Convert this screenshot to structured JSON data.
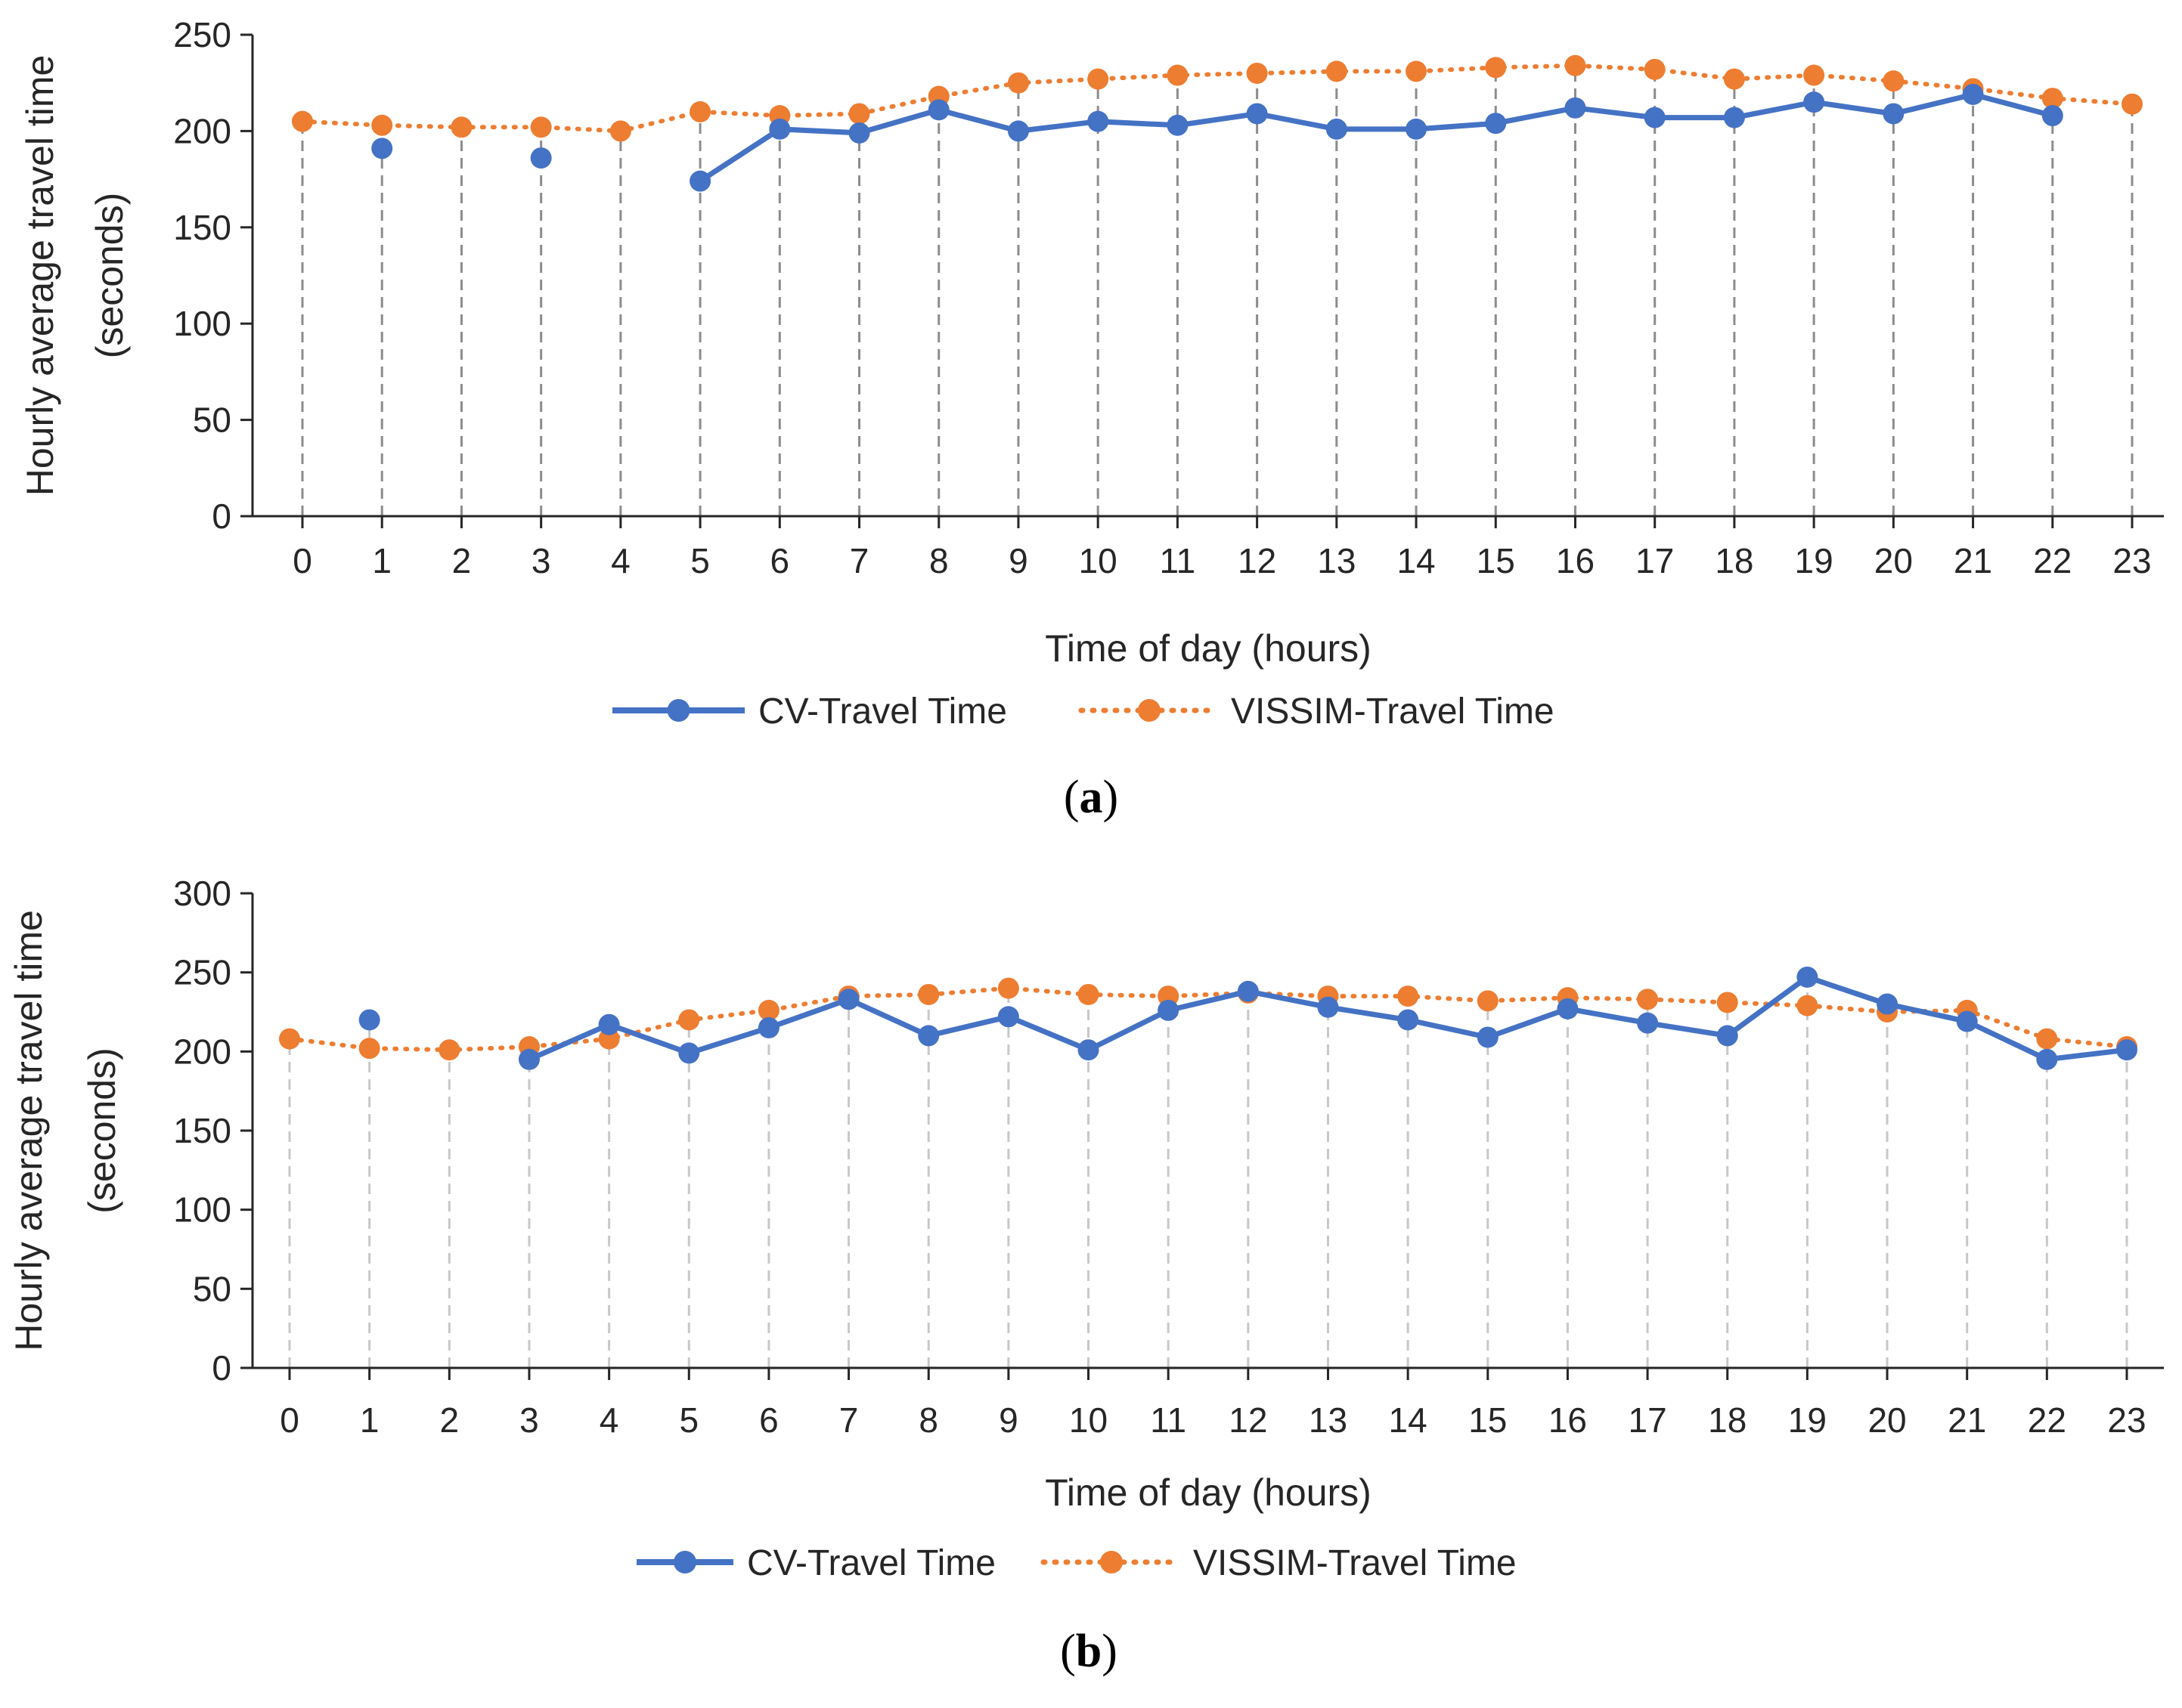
{
  "chart_data": [
    {
      "type": "line",
      "panel_label": "a",
      "xlabel": "Time of day (hours)",
      "ylabel_line1": "Hourly average travel time",
      "ylabel_line2": "(seconds)",
      "ylim": [
        0,
        250
      ],
      "yticks": [
        0,
        50,
        100,
        150,
        200,
        250
      ],
      "x": [
        0,
        1,
        2,
        3,
        4,
        5,
        6,
        7,
        8,
        9,
        10,
        11,
        12,
        13,
        14,
        15,
        16,
        17,
        18,
        19,
        20,
        21,
        22,
        23
      ],
      "gridlines": "vertical-dashed",
      "legend_position": "bottom",
      "series": [
        {
          "name": "CV-Travel Time",
          "color": "#4472C4",
          "style": "solid",
          "values": [
            null,
            191,
            null,
            186,
            null,
            174,
            201,
            199,
            211,
            200,
            205,
            203,
            209,
            201,
            201,
            204,
            212,
            207,
            207,
            215,
            209,
            219,
            208,
            null
          ]
        },
        {
          "name": "VISSIM-Travel Time",
          "color": "#ED7D31",
          "style": "dotted",
          "values": [
            205,
            203,
            202,
            202,
            200,
            210,
            208,
            209,
            218,
            225,
            227,
            229,
            230,
            231,
            231,
            233,
            234,
            232,
            227,
            229,
            226,
            222,
            217,
            214
          ]
        }
      ]
    },
    {
      "type": "line",
      "panel_label": "b",
      "xlabel": "Time of day (hours)",
      "ylabel_line1": "Hourly average travel time",
      "ylabel_line2": "(seconds)",
      "ylim": [
        0,
        300
      ],
      "yticks": [
        0,
        50,
        100,
        150,
        200,
        250,
        300
      ],
      "x": [
        0,
        1,
        2,
        3,
        4,
        5,
        6,
        7,
        8,
        9,
        10,
        11,
        12,
        13,
        14,
        15,
        16,
        17,
        18,
        19,
        20,
        21,
        22,
        23
      ],
      "gridlines": "vertical-dashed",
      "legend_position": "bottom",
      "series": [
        {
          "name": "CV-Travel Time",
          "color": "#4472C4",
          "style": "solid",
          "values": [
            null,
            220,
            null,
            195,
            217,
            199,
            215,
            233,
            210,
            222,
            201,
            226,
            238,
            228,
            220,
            209,
            227,
            218,
            210,
            247,
            230,
            219,
            195,
            201
          ]
        },
        {
          "name": "VISSIM-Travel Time",
          "color": "#ED7D31",
          "style": "dotted",
          "values": [
            208,
            202,
            201,
            203,
            208,
            220,
            226,
            235,
            236,
            240,
            236,
            235,
            237,
            235,
            235,
            232,
            234,
            233,
            231,
            229,
            225,
            226,
            208,
            203
          ]
        }
      ]
    }
  ],
  "captions": {
    "a": "a",
    "b": "b"
  }
}
